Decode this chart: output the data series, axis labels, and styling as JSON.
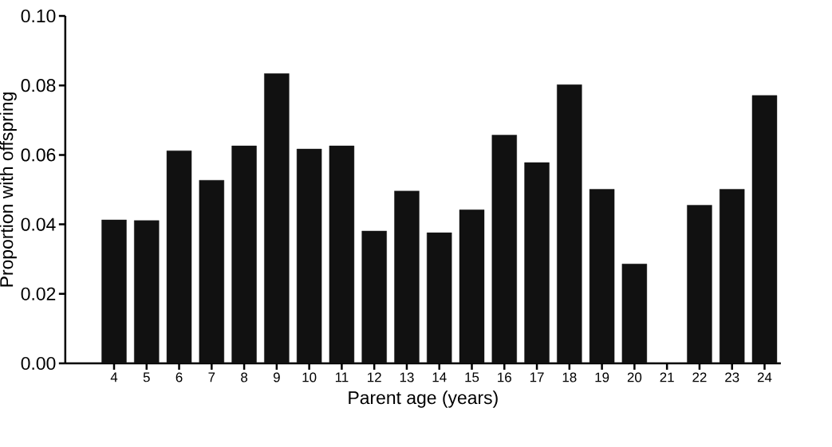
{
  "chart_data": {
    "type": "bar",
    "xlabel": "Parent age (years)",
    "ylabel": "Proportion with offspring",
    "categories": [
      "4",
      "5",
      "6",
      "7",
      "8",
      "9",
      "10",
      "11",
      "12",
      "13",
      "14",
      "15",
      "16",
      "17",
      "18",
      "19",
      "20",
      "21",
      "22",
      "23",
      "24"
    ],
    "values": [
      0.0413,
      0.0411,
      0.0612,
      0.0527,
      0.0626,
      0.0834,
      0.0617,
      0.0626,
      0.0381,
      0.0496,
      0.0376,
      0.0442,
      0.0657,
      0.0578,
      0.0802,
      0.0501,
      0.0286,
      0,
      0.0455,
      0.0501,
      0.0771
    ],
    "color": "#111111",
    "ylim": [
      0,
      0.1
    ],
    "yticks": [
      {
        "value": 0,
        "label": "0.00"
      },
      {
        "value": 0.02,
        "label": "0.02"
      },
      {
        "value": 0.04,
        "label": "0.04"
      },
      {
        "value": 0.06,
        "label": "0.06"
      },
      {
        "value": 0.08,
        "label": "0.08"
      },
      {
        "value": 0.1,
        "label": "0.10"
      }
    ],
    "grid": false
  }
}
